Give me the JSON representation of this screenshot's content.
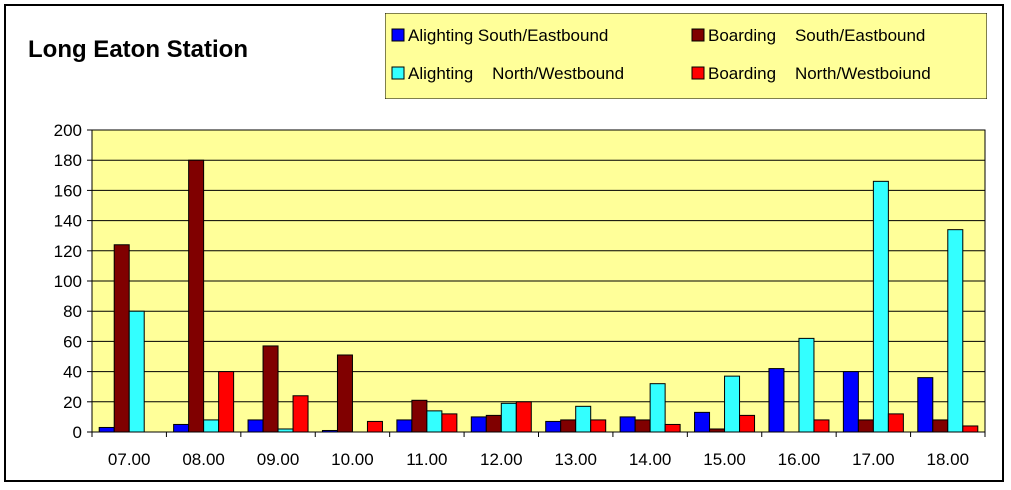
{
  "chart_data": {
    "type": "bar",
    "title": "Long Eaton Station",
    "xlabel": "",
    "ylabel": "",
    "ylim": [
      0,
      200
    ],
    "yticks": [
      0,
      20,
      40,
      60,
      80,
      100,
      120,
      140,
      160,
      180,
      200
    ],
    "grid": true,
    "legend_position": "top-right",
    "plot_background": "#FFFF99",
    "categories": [
      "07.00",
      "08.00",
      "09.00",
      "10.00",
      "11.00",
      "12.00",
      "13.00",
      "14.00",
      "15.00",
      "16.00",
      "17.00",
      "18.00"
    ],
    "series": [
      {
        "name": "Alighting South/Eastbound",
        "color": "#0000FF",
        "values": [
          3,
          5,
          8,
          1,
          8,
          10,
          7,
          10,
          13,
          42,
          40,
          36
        ]
      },
      {
        "name": "Boarding    South/Eastbound",
        "color": "#800000",
        "values": [
          124,
          180,
          57,
          51,
          21,
          11,
          8,
          8,
          2,
          0,
          8,
          8
        ]
      },
      {
        "name": "Alighting    North/Westbound",
        "color": "#33FFFF",
        "values": [
          80,
          8,
          2,
          0,
          14,
          19,
          17,
          32,
          37,
          62,
          166,
          134
        ]
      },
      {
        "name": "Boarding    North/Westboiund",
        "color": "#FF0000",
        "values": [
          0,
          40,
          24,
          7,
          12,
          20,
          8,
          5,
          11,
          8,
          12,
          4
        ]
      }
    ]
  }
}
